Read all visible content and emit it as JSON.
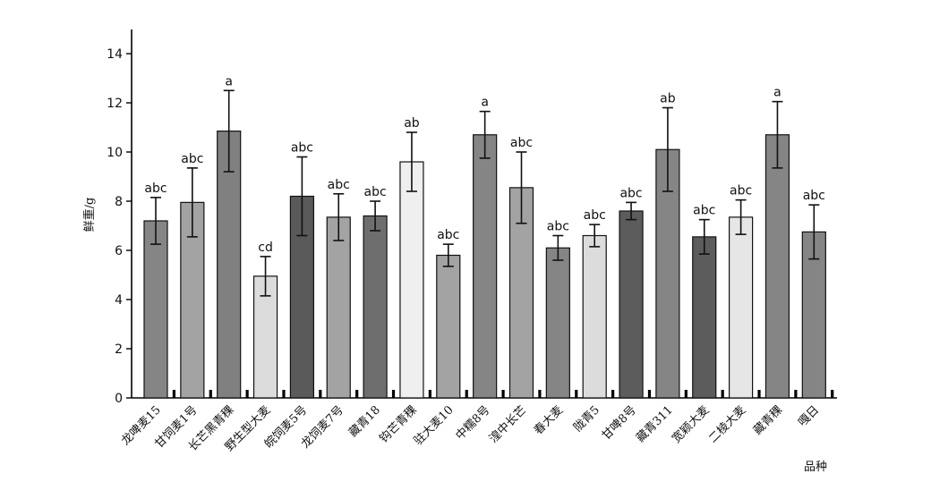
{
  "chart_data": {
    "type": "bar",
    "ylabel": "鲜重/g",
    "xlabel": "品种",
    "ylim": [
      0,
      15
    ],
    "yticks": [
      0,
      2,
      4,
      6,
      8,
      10,
      12,
      14
    ],
    "grid": false,
    "categories": [
      "龙啤麦15",
      "甘饲麦1号",
      "长芒黑青稞",
      "野生型大麦",
      "皖饲麦5号",
      "龙饲麦7号",
      "藏青18",
      "钩芒青稞",
      "驻大麦10",
      "中糯8号",
      "湟中长芒",
      "春大麦",
      "陇青5",
      "甘啤8号",
      "藏青311",
      "宽颖大麦",
      "二棱大麦",
      "藏青稞",
      "嘎日"
    ],
    "values": [
      7.2,
      7.95,
      10.85,
      4.95,
      8.2,
      7.35,
      7.4,
      9.6,
      5.8,
      10.7,
      8.55,
      6.1,
      6.6,
      7.6,
      10.1,
      6.55,
      7.35,
      10.7,
      6.75
    ],
    "errors": [
      0.95,
      1.4,
      1.65,
      0.8,
      1.6,
      0.95,
      0.6,
      1.2,
      0.45,
      0.95,
      1.45,
      0.5,
      0.45,
      0.35,
      1.7,
      0.7,
      0.7,
      1.35,
      1.1
    ],
    "significance": [
      "abc",
      "abc",
      "a",
      "cd",
      "abc",
      "abc",
      "abc",
      "ab",
      "abc",
      "a",
      "abc",
      "abc",
      "abc",
      "abc",
      "ab",
      "abc",
      "abc",
      "a",
      "abc"
    ],
    "colors": [
      "#858585",
      "#a3a3a3",
      "#808080",
      "#dcdcdc",
      "#5a5a5a",
      "#a3a3a3",
      "#6e6e6e",
      "#efefef",
      "#a3a3a3",
      "#858585",
      "#a3a3a3",
      "#858585",
      "#dcdcdc",
      "#5c5c5c",
      "#858585",
      "#5c5c5c",
      "#e6e6e6",
      "#858585",
      "#858585"
    ]
  }
}
